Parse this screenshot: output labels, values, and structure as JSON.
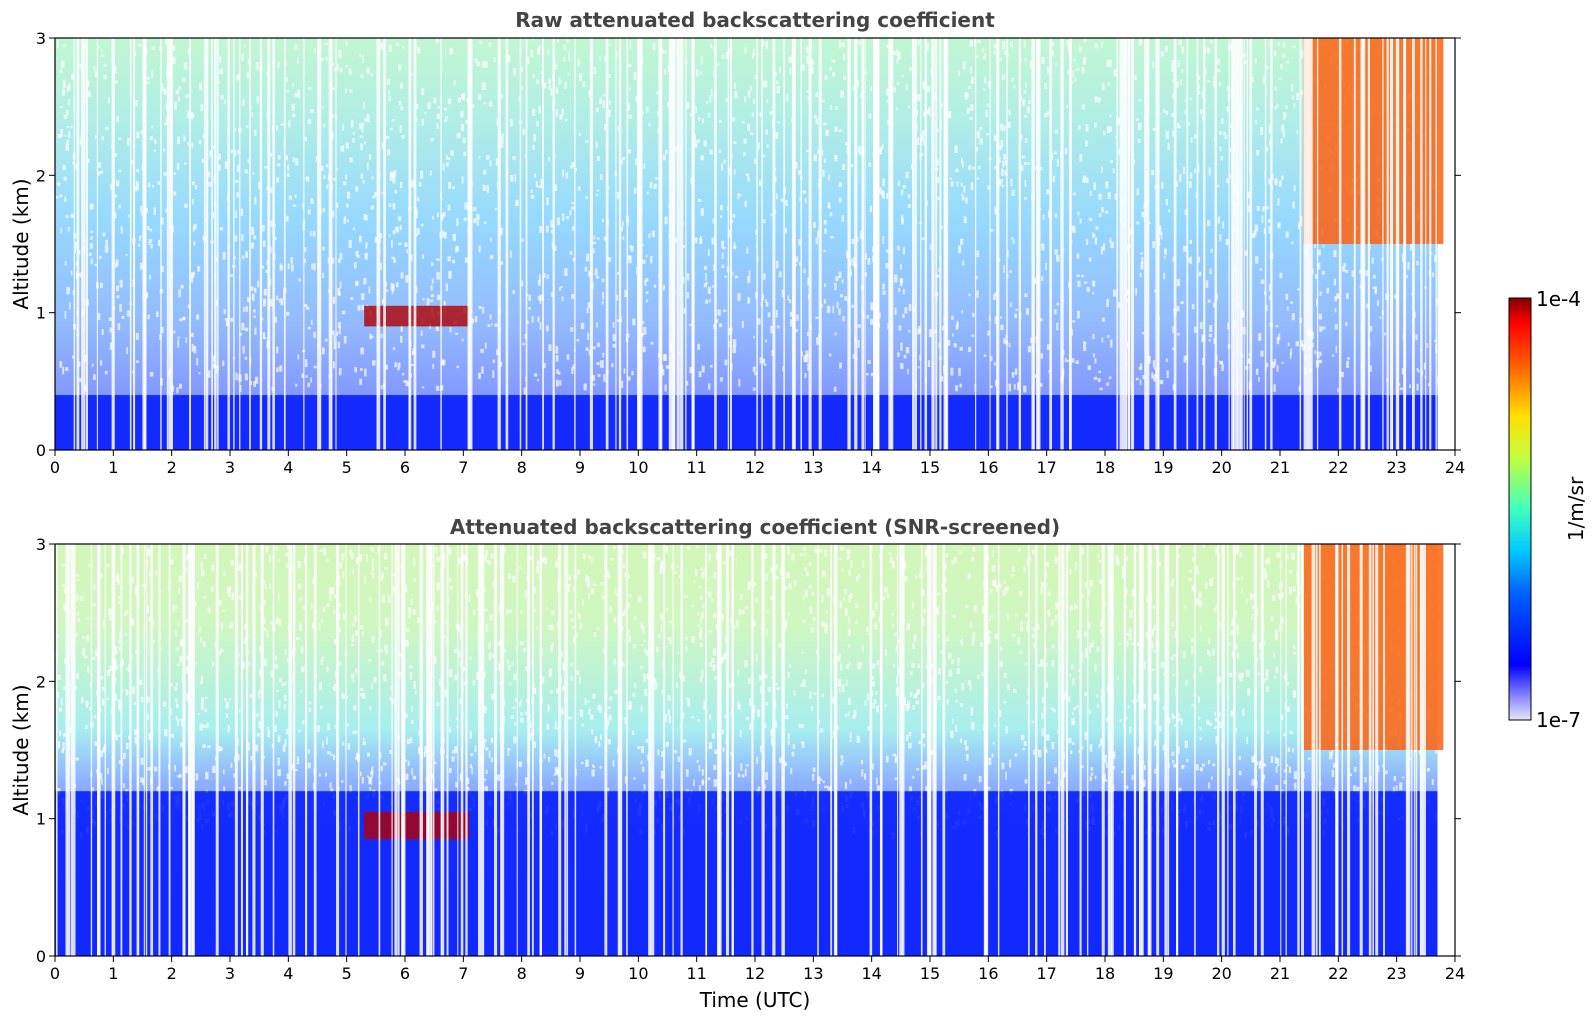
{
  "chart_data": [
    {
      "type": "heatmap",
      "title": "Raw attenuated backscattering coefficient",
      "xlabel": "",
      "ylabel": "Altitude (km)",
      "xlim": [
        0,
        24
      ],
      "ylim": [
        0,
        3
      ],
      "x_ticks": [
        "0",
        "1",
        "2",
        "3",
        "4",
        "5",
        "6",
        "7",
        "8",
        "9",
        "10",
        "11",
        "12",
        "13",
        "14",
        "15",
        "16",
        "17",
        "18",
        "19",
        "20",
        "21",
        "22",
        "23",
        "24"
      ],
      "y_ticks": [
        "0",
        "1",
        "2",
        "3"
      ],
      "features": [
        {
          "description": "dense blue layer",
          "x_range": [
            0,
            23.7
          ],
          "y_range": [
            0,
            0.4
          ]
        },
        {
          "description": "thin aerosol feature",
          "x_range": [
            5.3,
            7.1
          ],
          "y_range": [
            0.9,
            1.05
          ]
        },
        {
          "description": "cloud",
          "x_range": [
            21.4,
            23.8
          ],
          "y_range": [
            1.5,
            3.0
          ]
        }
      ],
      "colormap": "jet",
      "scale": "log"
    },
    {
      "type": "heatmap",
      "title": "Attenuated backscattering coefficient (SNR-screened)",
      "xlabel": "Time (UTC)",
      "ylabel": "Altitude (km)",
      "xlim": [
        0,
        24
      ],
      "ylim": [
        0,
        3
      ],
      "x_ticks": [
        "0",
        "1",
        "2",
        "3",
        "4",
        "5",
        "6",
        "7",
        "8",
        "9",
        "10",
        "11",
        "12",
        "13",
        "14",
        "15",
        "16",
        "17",
        "18",
        "19",
        "20",
        "21",
        "22",
        "23",
        "24"
      ],
      "y_ticks": [
        "0",
        "1",
        "2",
        "3"
      ],
      "features": [
        {
          "description": "dense blue layer",
          "x_range": [
            0,
            23.7
          ],
          "y_range": [
            0,
            1.2
          ]
        },
        {
          "description": "thin aerosol feature",
          "x_range": [
            5.3,
            7.1
          ],
          "y_range": [
            0.85,
            1.05
          ]
        },
        {
          "description": "cloud",
          "x_range": [
            21.4,
            23.8
          ],
          "y_range": [
            1.5,
            3.0
          ]
        }
      ],
      "colormap": "jet",
      "scale": "log"
    }
  ],
  "colorbar": {
    "label": "1/m/sr",
    "max_label": "1e-4",
    "min_label": "1e-7",
    "range": [
      1e-07,
      0.0001
    ],
    "scale": "log"
  }
}
